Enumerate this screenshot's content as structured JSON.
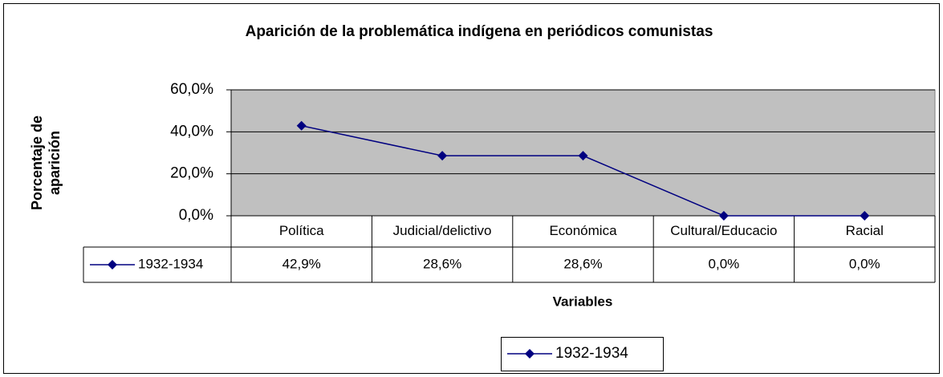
{
  "chart_data": {
    "type": "line",
    "title": "Aparición de la problemática indígena en periódicos comunistas",
    "ylabel": [
      "Porcentaje de",
      "aparición"
    ],
    "xlabel": "Variables",
    "categories": [
      "Política",
      "Judicial/delictivo",
      "Económica",
      "Cultural/Educacio",
      "Racial"
    ],
    "series": [
      {
        "name": "1932-1934",
        "color": "#000080",
        "values": [
          42.9,
          28.6,
          28.6,
          0,
          0
        ],
        "value_labels": [
          "42,9%",
          "28,6%",
          "28,6%",
          "0,0%",
          "0,0%"
        ]
      }
    ],
    "ylim": [
      0,
      60
    ],
    "yticks": [
      {
        "value": 0,
        "label": "0,0%"
      },
      {
        "value": 20,
        "label": "20,0%"
      },
      {
        "value": 40,
        "label": "40,0%"
      },
      {
        "value": 60,
        "label": "60,0%"
      }
    ],
    "grid": true,
    "plot_background": "#c0c0c0",
    "legend": "bottom"
  }
}
